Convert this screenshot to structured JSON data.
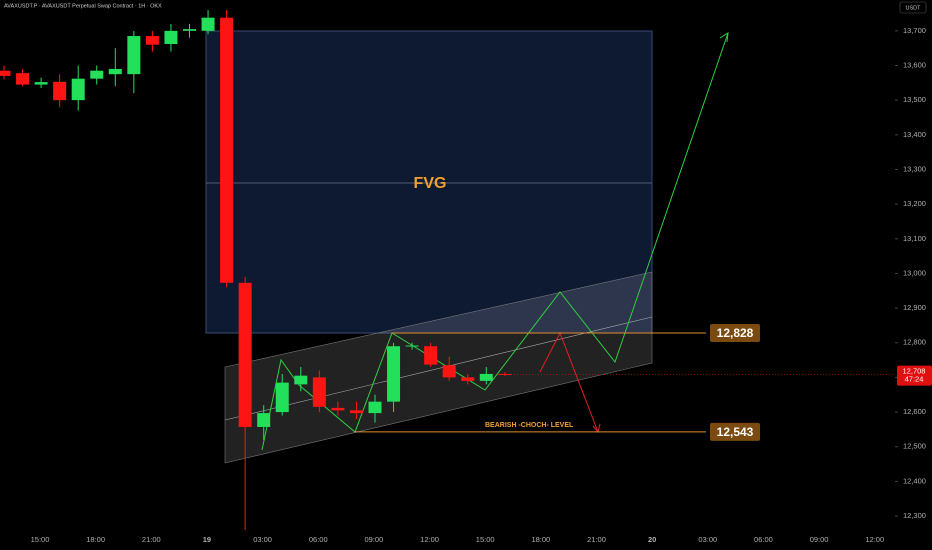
{
  "chart_data": {
    "type": "candlestick",
    "title": "AVAXUSDT.P · AVAXUSDT Perpetual Swap Contract · 1H · OKX",
    "currency": "USDT",
    "open": [
      13585,
      13578,
      13545,
      13553,
      13500,
      13562,
      13575,
      13575,
      13685,
      13662,
      13700,
      13700,
      13738,
      12973,
      12557,
      12600,
      12680,
      12700,
      12612,
      12605,
      12597,
      12630,
      12790,
      12790,
      12735,
      12700,
      12690,
      12710
    ],
    "high": [
      13600,
      13590,
      13565,
      13575,
      13600,
      13600,
      13650,
      13700,
      13700,
      13720,
      13720,
      13760,
      13760,
      12990,
      12620,
      12710,
      12730,
      12720,
      12630,
      12630,
      12650,
      12800,
      12800,
      12800,
      12760,
      12710,
      12730,
      12715
    ],
    "low": [
      13560,
      13540,
      13535,
      13480,
      13470,
      13545,
      13540,
      13520,
      13640,
      13640,
      13680,
      13690,
      12960,
      12260,
      12520,
      12590,
      12660,
      12600,
      12590,
      12580,
      12570,
      12600,
      12780,
      12730,
      12690,
      12680,
      12680,
      12705
    ],
    "close": [
      13570,
      13545,
      13552,
      13500,
      13562,
      13585,
      13590,
      13685,
      13660,
      13700,
      13705,
      13738,
      12973,
      12557,
      12597,
      12685,
      12705,
      12615,
      12605,
      12597,
      12630,
      12790,
      12792,
      12737,
      12700,
      12690,
      12710,
      12708
    ],
    "up_color": "#22e05a",
    "down_color": "#ff1414",
    "ylim": [
      12202,
      13789
    ],
    "yticks": [
      {
        "value": 12300,
        "label": "12,300"
      },
      {
        "value": 12400,
        "label": "12,400"
      },
      {
        "value": 12500,
        "label": "12,500"
      },
      {
        "value": 12600,
        "label": "12,600"
      },
      {
        "value": 12700,
        "label": "12,700"
      },
      {
        "value": 12800,
        "label": "12,800"
      },
      {
        "value": 12900,
        "label": "12,900"
      },
      {
        "value": 13000,
        "label": "13,000"
      },
      {
        "value": 13100,
        "label": "13,100"
      },
      {
        "value": 13200,
        "label": "13,200"
      },
      {
        "value": 13300,
        "label": "13,300"
      },
      {
        "value": 13400,
        "label": "13,400"
      },
      {
        "value": 13500,
        "label": "13,500"
      },
      {
        "value": 13600,
        "label": "13,600"
      },
      {
        "value": 13700,
        "label": "13,700"
      }
    ],
    "x_labels": [
      "15:00",
      "18:00",
      "21:00",
      "19",
      "03:00",
      "06:00",
      "09:00",
      "12:00",
      "15:00",
      "18:00",
      "21:00",
      "20",
      "03:00",
      "06:00",
      "09:00",
      "12:00"
    ],
    "fvg_label": "FVG",
    "levels": [
      {
        "value": 12828,
        "label": "12,828"
      },
      {
        "value": 12543,
        "label": "12,543"
      }
    ],
    "level_note": "BEARISH -CHOCH- LEVEL",
    "last_price": {
      "value": 12708,
      "label": "12,708"
    },
    "countdown": "47:24"
  }
}
